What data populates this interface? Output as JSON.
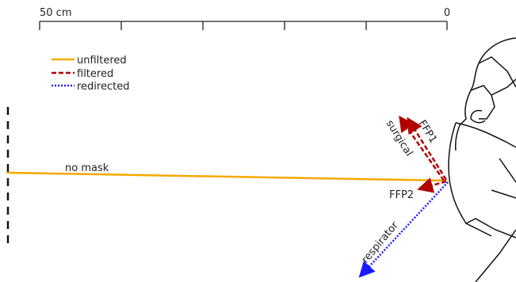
{
  "scale": {
    "left_label": "50 cm",
    "right_label": "0"
  },
  "legend": [
    {
      "label": "unfiltered"
    },
    {
      "label": "filtered"
    },
    {
      "label": "redirected"
    }
  ],
  "flows": {
    "no_mask": "no mask",
    "ffp1": "FFP1",
    "surgical": "surgical",
    "ffp2": "FFP2",
    "respirator": "respirator"
  }
}
